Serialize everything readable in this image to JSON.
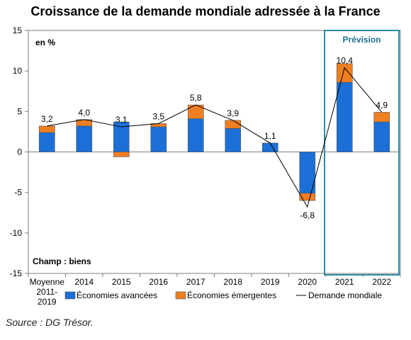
{
  "chart_data": {
    "type": "bar",
    "title": "Croissance de la demande mondiale adressée à la France",
    "unit_label": "en %",
    "scope_label": "Champ : biens",
    "forecast_label": "Prévision",
    "source": "Source : DG Trésor.",
    "categories": [
      [
        "Moyenne",
        "2011-",
        "2019"
      ],
      [
        "2014"
      ],
      [
        "2015"
      ],
      [
        "2016"
      ],
      [
        "2017"
      ],
      [
        "2018"
      ],
      [
        "2019"
      ],
      [
        "2020"
      ],
      [
        "2021"
      ],
      [
        "2022"
      ]
    ],
    "series": [
      {
        "name": "Économies avancées",
        "values": [
          2.4,
          3.2,
          3.7,
          3.1,
          4.1,
          2.9,
          1.1,
          -5.1,
          8.6,
          3.7
        ]
      },
      {
        "name": "Économies émergentes",
        "values": [
          0.8,
          0.8,
          -0.6,
          0.4,
          1.7,
          1.0,
          0.0,
          -0.9,
          2.3,
          1.2
        ]
      },
      {
        "name": "Demande mondiale",
        "values": [
          3.2,
          4.0,
          3.1,
          3.5,
          5.8,
          3.9,
          1.1,
          -6.8,
          10.4,
          4.9
        ]
      }
    ],
    "data_labels": [
      "3,2",
      "4,0",
      "3,1",
      "3,5",
      "5,8",
      "3,9",
      "1,1",
      "-6,8",
      "10,4",
      "4,9"
    ],
    "y_ticks": [
      15,
      10,
      5,
      0,
      -5,
      -10,
      -15
    ],
    "ylim": [
      -15,
      15
    ],
    "forecast_categories": [
      "2021",
      "2022"
    ],
    "colors": {
      "advanced": "#1b6fd6",
      "emerging": "#f07f22",
      "line": "#000000",
      "forecast_box": "#2a8aa5",
      "forecast_text": "#1f6f8b"
    },
    "legend_placement": "bottom",
    "grid": false
  }
}
